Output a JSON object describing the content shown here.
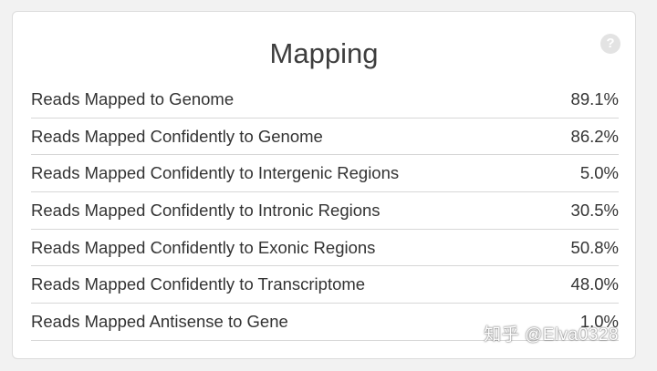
{
  "card": {
    "title": "Mapping",
    "help_icon": "?"
  },
  "rows": [
    {
      "label": "Reads Mapped to Genome",
      "value": "89.1%"
    },
    {
      "label": "Reads Mapped Confidently to Genome",
      "value": "86.2%"
    },
    {
      "label": "Reads Mapped Confidently to Intergenic Regions",
      "value": "5.0%"
    },
    {
      "label": "Reads Mapped Confidently to Intronic Regions",
      "value": "30.5%"
    },
    {
      "label": "Reads Mapped Confidently to Exonic Regions",
      "value": "50.8%"
    },
    {
      "label": "Reads Mapped Confidently to Transcriptome",
      "value": "48.0%"
    },
    {
      "label": "Reads Mapped Antisense to Gene",
      "value": "1.0%"
    }
  ],
  "watermark": "知乎 @Elva0328",
  "colors": {
    "background": "#f2f2f2",
    "card": "#ffffff",
    "text": "#333333",
    "divider": "#d7d7d7",
    "help_icon": "#e3e3e3"
  }
}
